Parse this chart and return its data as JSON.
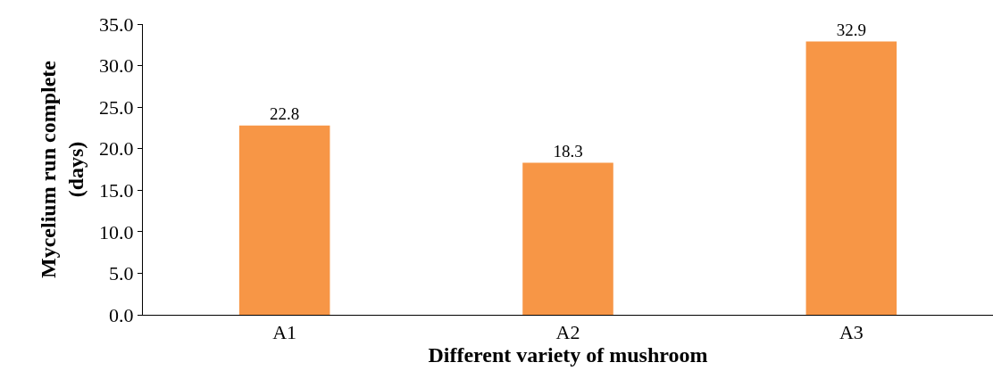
{
  "chart_data": {
    "type": "bar",
    "xlabel": "Different variety of mushroom",
    "ylabel": "Mycelium run complete\n(days)",
    "categories": [
      "A1",
      "A2",
      "A3"
    ],
    "values": [
      22.8,
      18.3,
      32.9
    ],
    "color": "#f79646",
    "ylim": [
      0,
      35
    ],
    "yticks": [
      {
        "value": 0,
        "label": "0.0"
      },
      {
        "value": 5,
        "label": "5.0"
      },
      {
        "value": 10,
        "label": "10.0"
      },
      {
        "value": 15,
        "label": "15.0"
      },
      {
        "value": 20,
        "label": "20.0"
      },
      {
        "value": 25,
        "label": "25.0"
      },
      {
        "value": 30,
        "label": "30.0"
      },
      {
        "value": 35,
        "label": "35.0"
      }
    ],
    "data_labels": true
  }
}
